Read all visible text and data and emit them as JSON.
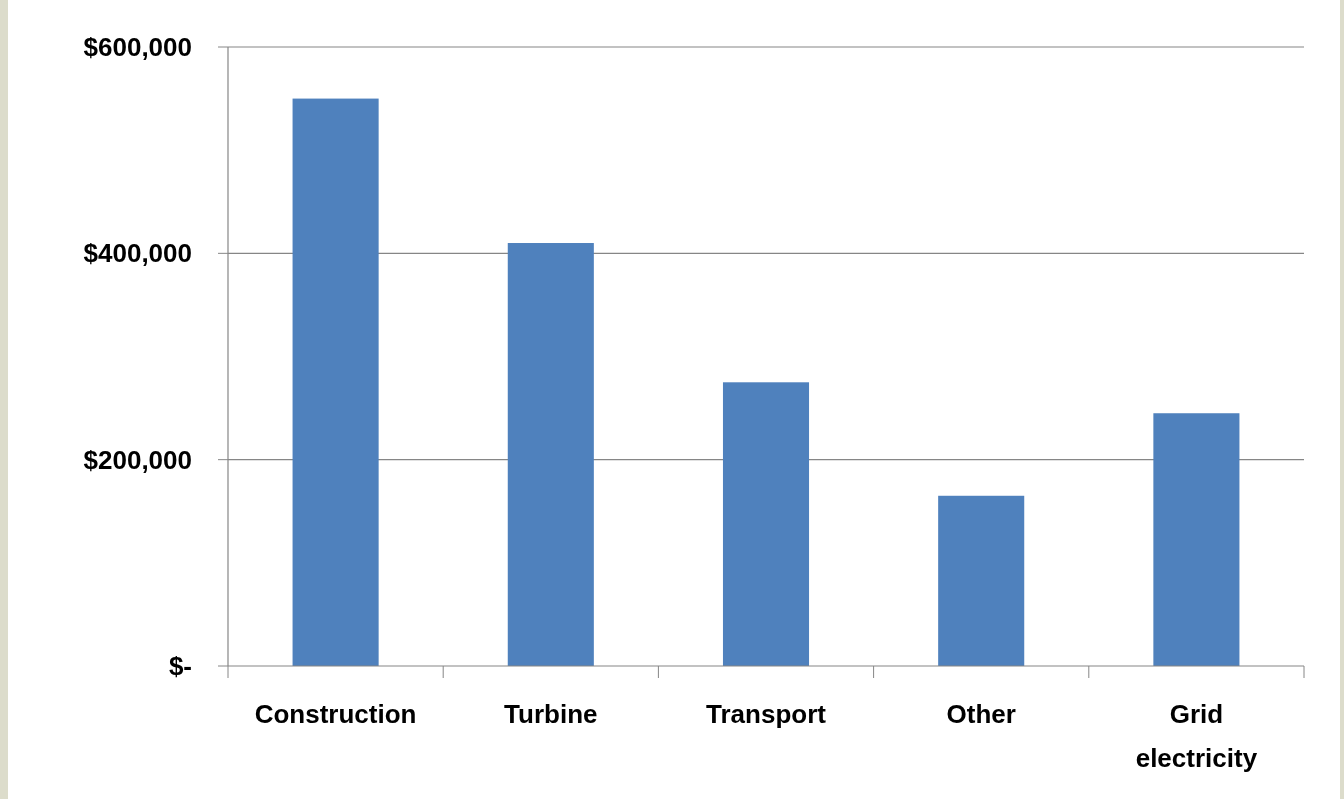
{
  "chart_data": {
    "type": "bar",
    "categories": [
      "Construction",
      "Turbine",
      "Transport",
      "Other",
      "Grid electricity"
    ],
    "values": [
      550000,
      410000,
      275000,
      165000,
      245000
    ],
    "color": "#4f81bd",
    "ylim": [
      0,
      600000
    ],
    "yticks": [
      {
        "value": 0,
        "label": "$-"
      },
      {
        "value": 200000,
        "label": "$200,000"
      },
      {
        "value": 400000,
        "label": "$400,000"
      },
      {
        "value": 600000,
        "label": "$600,000"
      }
    ],
    "grid": "y"
  }
}
